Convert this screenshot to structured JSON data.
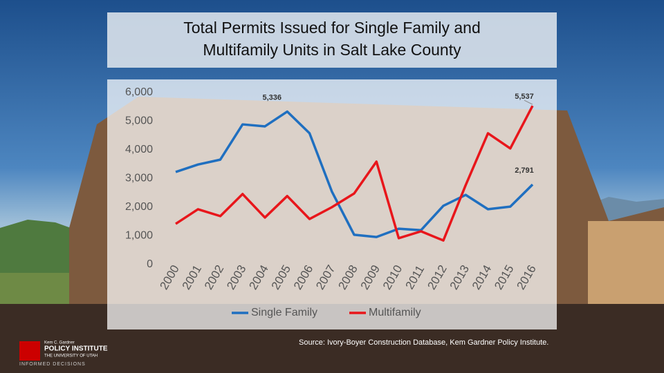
{
  "chart_data": {
    "type": "line",
    "title": "Total Permits Issued for Single Family and Multifamily Units in Salt Lake County",
    "categories": [
      "2000",
      "2001",
      "2002",
      "2003",
      "2004",
      "2005",
      "2006",
      "2007",
      "2008",
      "2009",
      "2010",
      "2011",
      "2012",
      "2013",
      "2014",
      "2015",
      "2016"
    ],
    "series": [
      {
        "name": "Single Family",
        "color": "#1f6fc0",
        "values": [
          3230,
          3490,
          3660,
          4890,
          4820,
          5336,
          4580,
          2550,
          1040,
          960,
          1250,
          1200,
          2050,
          2430,
          1930,
          2020,
          2791
        ],
        "value_labels": [
          null,
          null,
          null,
          null,
          null,
          "5,336",
          null,
          null,
          null,
          null,
          null,
          null,
          null,
          null,
          null,
          null,
          "2,791"
        ]
      },
      {
        "name": "Multifamily",
        "color": "#e8161b",
        "values": [
          1420,
          1930,
          1690,
          2460,
          1640,
          2390,
          1590,
          2000,
          2480,
          3590,
          920,
          1160,
          840,
          2770,
          4580,
          4050,
          5537
        ],
        "value_labels": [
          null,
          null,
          null,
          null,
          null,
          null,
          null,
          null,
          null,
          null,
          null,
          null,
          null,
          null,
          null,
          null,
          "5,537"
        ]
      }
    ],
    "ylim": [
      0,
      6000
    ],
    "yticks": [
      0,
      {
        "value": 1000,
        "label": "1,000"
      },
      {
        "value": 2000,
        "label": "2,000"
      },
      {
        "value": 3000,
        "label": "3,000"
      },
      {
        "value": 4000,
        "label": "4,000"
      },
      {
        "value": 5000,
        "label": "5,000"
      },
      {
        "value": 6000,
        "label": "6,000"
      }
    ],
    "grid": false,
    "legend": "bottom"
  },
  "source": "Source: Ivory-Boyer Construction Database, Kem Gardner Policy Institute.",
  "logo": {
    "top": "Kem C. Gardner",
    "name": "POLICY INSTITUTE",
    "university": "THE UNIVERSITY OF UTAH",
    "tagline": "INFORMED DECISIONS"
  }
}
